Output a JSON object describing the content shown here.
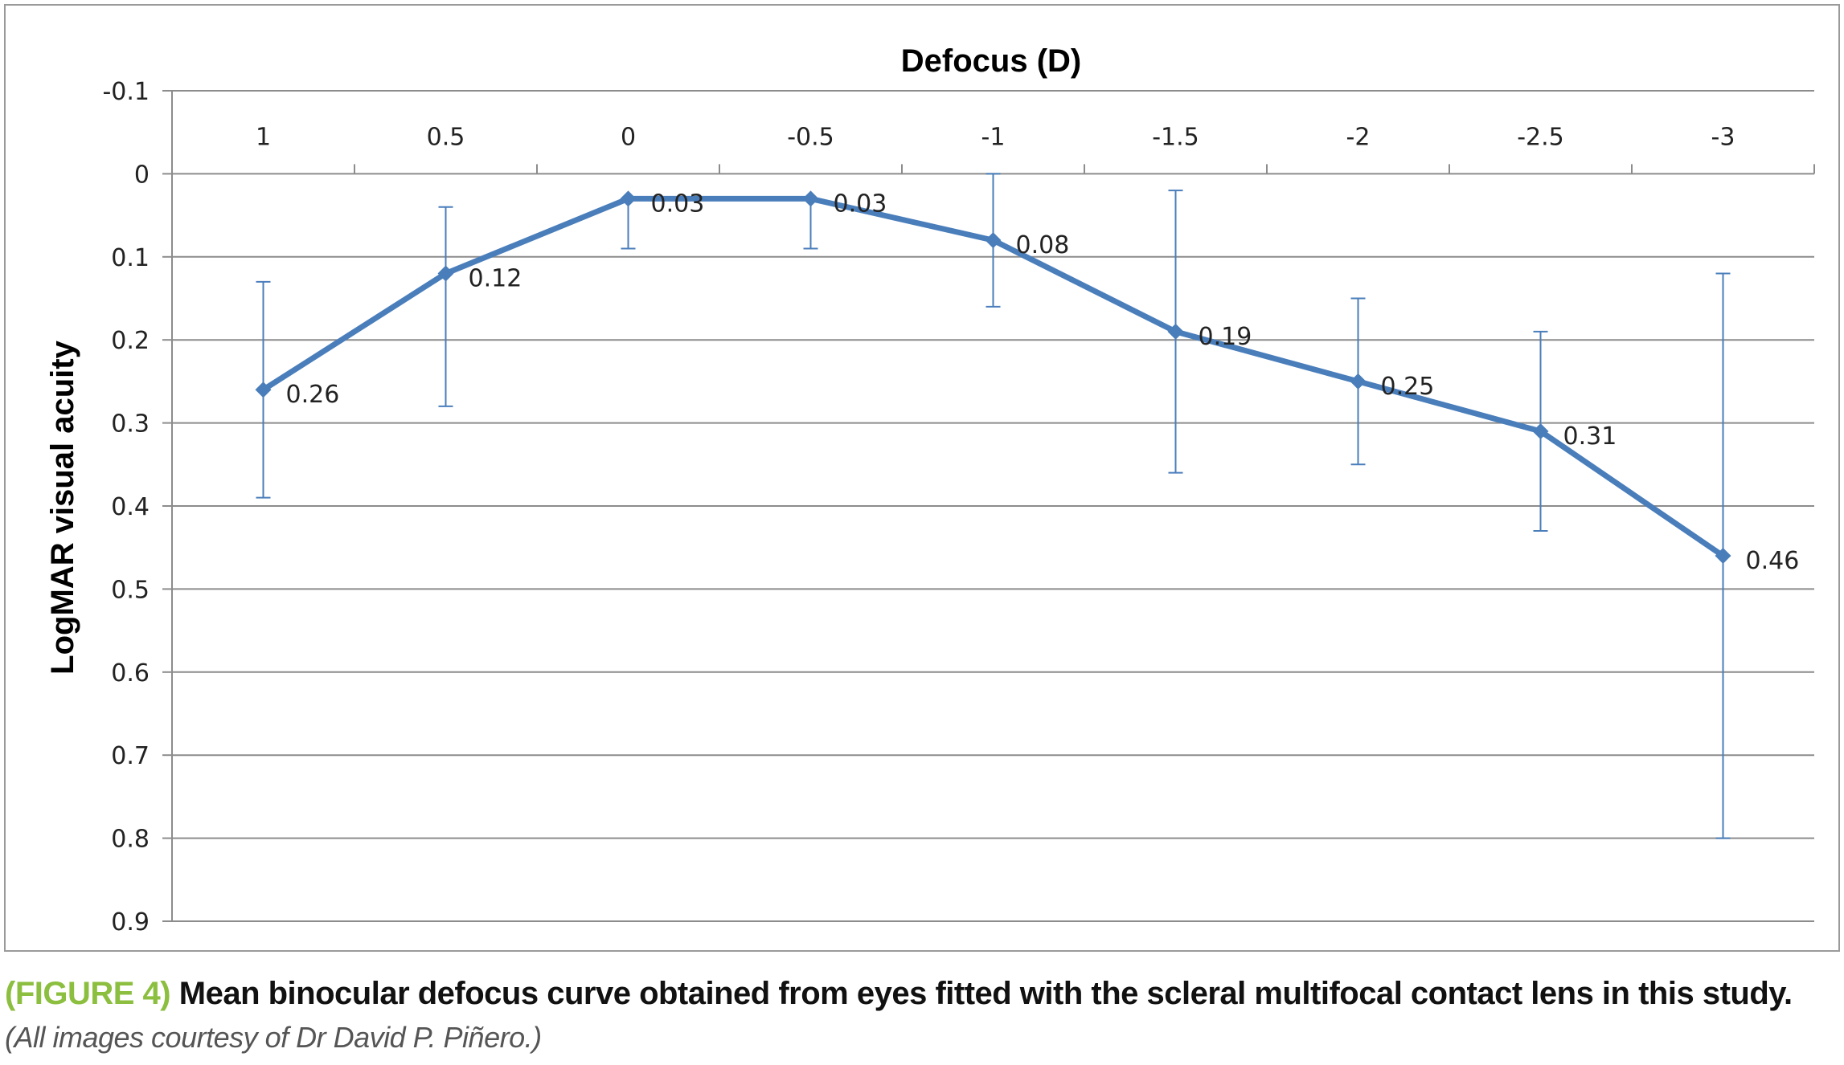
{
  "chart_data": {
    "type": "line",
    "title": "Defocus (D)",
    "xlabel": "Defocus (D)",
    "ylabel": "LogMAR visual acuity",
    "categories": [
      "1",
      "0.5",
      "0",
      "-0.5",
      "-1",
      "-1.5",
      "-2",
      "-2.5",
      "-3"
    ],
    "values": [
      0.26,
      0.12,
      0.03,
      0.03,
      0.08,
      0.19,
      0.25,
      0.31,
      0.46
    ],
    "data_labels": [
      "0.26",
      "0.12",
      "0.03",
      "0.03",
      "0.08",
      "0.19",
      "0.25",
      "0.31",
      "0.46"
    ],
    "error_low": [
      0.13,
      0.04,
      0.03,
      0.03,
      0.0,
      0.02,
      0.15,
      0.19,
      0.12
    ],
    "error_high": [
      0.39,
      0.28,
      0.09,
      0.09,
      0.16,
      0.36,
      0.35,
      0.43,
      0.8
    ],
    "ylim": [
      -0.1,
      0.9
    ],
    "y_inverted": true,
    "yticks": [
      "-0.1",
      "0",
      "0.1",
      "0.2",
      "0.3",
      "0.4",
      "0.5",
      "0.6",
      "0.7",
      "0.8",
      "0.9"
    ],
    "ytick_values": [
      -0.1,
      0,
      0.1,
      0.2,
      0.3,
      0.4,
      0.5,
      0.6,
      0.7,
      0.8,
      0.9
    ],
    "grid": true,
    "series_color": "#4a7ebb",
    "grid_color": "#8c8c8c"
  },
  "caption": {
    "figure_label": "(FIGURE 4)",
    "main_text": "Mean binocular defocus curve obtained from eyes fitted with the scleral multifocal contact lens in this study.",
    "credit": "(All images courtesy of Dr David P. Piñero.)"
  }
}
